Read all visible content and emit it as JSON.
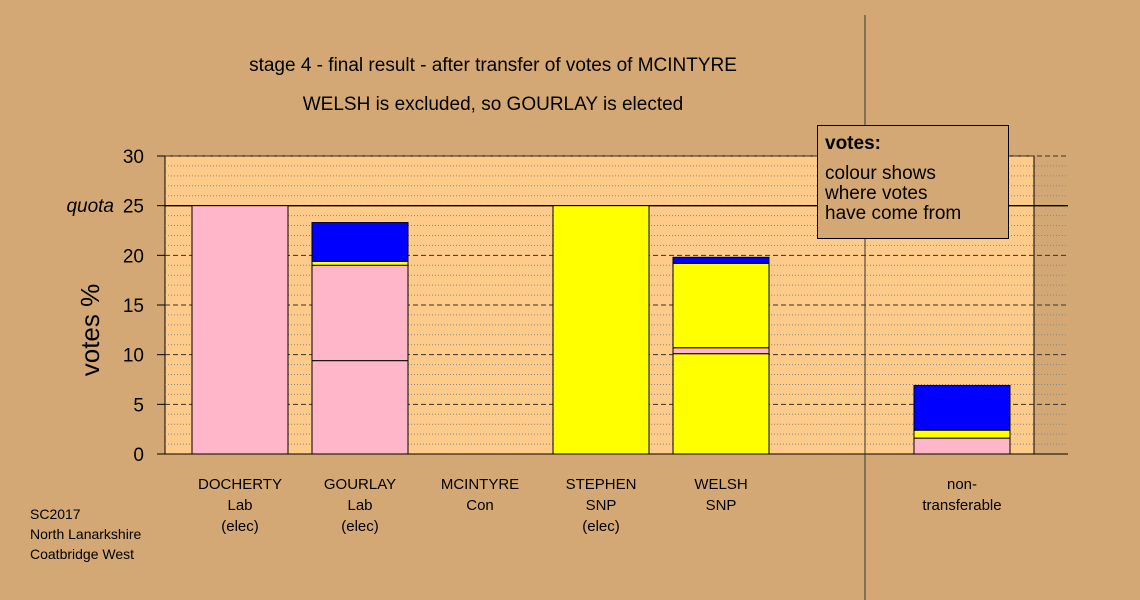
{
  "chart_data": {
    "type": "bar",
    "stacked": true,
    "title": "stage 4 - final result - after transfer of votes of MCINTYRE",
    "subtitle": "WELSH is excluded, so GOURLAY is elected",
    "ylabel": "votes %",
    "ylim": [
      0,
      30
    ],
    "yticks": [
      0,
      5,
      10,
      15,
      20,
      25,
      30
    ],
    "quota_label": "quota",
    "quota": 25,
    "grid": true,
    "colors": {
      "Lab": "#ffb6c8",
      "SNP": "#ffff00",
      "Con": "#0000ff"
    },
    "categories": [
      {
        "lines": [
          "DOCHERTY",
          "Lab",
          "(elec)"
        ],
        "segments": [
          {
            "from": "Lab",
            "value": 25.0
          }
        ]
      },
      {
        "lines": [
          "GOURLAY",
          "Lab",
          "(elec)"
        ],
        "segments": [
          {
            "from": "Lab",
            "value": 9.4
          },
          {
            "from": "Lab",
            "value": 9.6
          },
          {
            "from": "SNP",
            "value": 0.4
          },
          {
            "from": "Con",
            "value": 3.9
          }
        ]
      },
      {
        "lines": [
          "MCINTYRE",
          "Con"
        ],
        "segments": []
      },
      {
        "lines": [
          "STEPHEN",
          "SNP",
          "(elec)"
        ],
        "segments": [
          {
            "from": "SNP",
            "value": 25.0
          }
        ]
      },
      {
        "lines": [
          "WELSH",
          "SNP"
        ],
        "segments": [
          {
            "from": "SNP",
            "value": 10.1
          },
          {
            "from": "Lab",
            "value": 0.6
          },
          {
            "from": "SNP",
            "value": 8.5
          },
          {
            "from": "Con",
            "value": 0.6
          }
        ]
      },
      {
        "lines": [
          "non-",
          "transferable"
        ],
        "segments": [
          {
            "from": "Lab",
            "value": 1.6
          },
          {
            "from": "SNP",
            "value": 0.8
          },
          {
            "from": "Con",
            "value": 4.5
          }
        ]
      }
    ]
  },
  "legend": {
    "heading": "votes:",
    "lines": [
      "colour shows",
      "where votes",
      "have come from"
    ]
  },
  "footnote": [
    "SC2017",
    "North Lanarkshire",
    "Coatbridge West"
  ]
}
